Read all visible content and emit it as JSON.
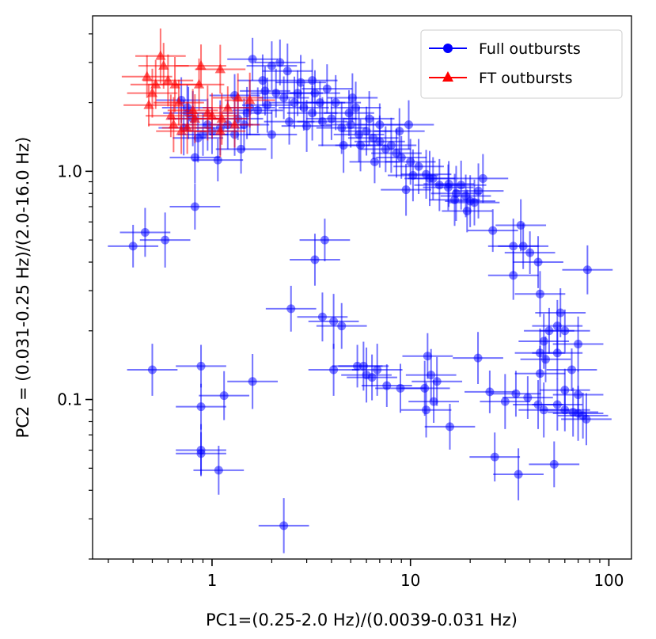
{
  "chart_data": {
    "type": "scatter",
    "title": "",
    "xlabel": "PC1=(0.25-2.0 Hz)/(0.0039-0.031 Hz)",
    "ylabel": "PC2 = (0.031-0.25 Hz)/(2.0-16.0 Hz)",
    "xscale": "log",
    "yscale": "log",
    "xlim": [
      0.25,
      130
    ],
    "ylim": [
      0.02,
      4.8
    ],
    "xticks": [
      {
        "value": 1,
        "label": "1"
      },
      {
        "value": 10,
        "label": "10"
      },
      {
        "value": 100,
        "label": "100"
      }
    ],
    "yticks": [
      {
        "value": 0.1,
        "label": "0.1"
      },
      {
        "value": 1.0,
        "label": "1.0"
      }
    ],
    "grid": false,
    "legend_position": "top-right",
    "series": [
      {
        "name": "Full outbursts",
        "color": "#0000ff",
        "marker": "circle",
        "points": [
          [
            0.4,
            0.47
          ],
          [
            0.46,
            0.54
          ],
          [
            0.58,
            0.5
          ],
          [
            0.82,
            0.7
          ],
          [
            0.5,
            0.135
          ],
          [
            0.88,
            0.14
          ],
          [
            1.15,
            0.104
          ],
          [
            1.6,
            0.12
          ],
          [
            0.88,
            0.093
          ],
          [
            0.88,
            0.06
          ],
          [
            0.88,
            0.058
          ],
          [
            1.08,
            0.049
          ],
          [
            2.3,
            0.028
          ],
          [
            2.5,
            0.25
          ],
          [
            3.3,
            0.41
          ],
          [
            3.7,
            0.5
          ],
          [
            3.6,
            0.23
          ],
          [
            4.1,
            0.22
          ],
          [
            4.5,
            0.21
          ],
          [
            4.1,
            0.135
          ],
          [
            5.4,
            0.14
          ],
          [
            5.8,
            0.14
          ],
          [
            6.0,
            0.128
          ],
          [
            6.4,
            0.125
          ],
          [
            6.8,
            0.135
          ],
          [
            7.6,
            0.115
          ],
          [
            8.9,
            0.112
          ],
          [
            11.8,
            0.112
          ],
          [
            12.2,
            0.155
          ],
          [
            12.7,
            0.128
          ],
          [
            13.1,
            0.098
          ],
          [
            13.6,
            0.12
          ],
          [
            12.0,
            0.09
          ],
          [
            15.8,
            0.076
          ],
          [
            21.9,
            0.152
          ],
          [
            25.1,
            0.108
          ],
          [
            26.6,
            0.056
          ],
          [
            30.0,
            0.098
          ],
          [
            34.0,
            0.106
          ],
          [
            35.0,
            0.047
          ],
          [
            39.0,
            0.102
          ],
          [
            44.0,
            0.095
          ],
          [
            47.0,
            0.09
          ],
          [
            53.0,
            0.052
          ],
          [
            55.0,
            0.095
          ],
          [
            60.0,
            0.09
          ],
          [
            66.0,
            0.088
          ],
          [
            70.0,
            0.087
          ],
          [
            74.0,
            0.085
          ],
          [
            77.0,
            0.082
          ],
          [
            60.0,
            0.11
          ],
          [
            70.0,
            0.105
          ],
          [
            45.0,
            0.13
          ],
          [
            48.0,
            0.15
          ],
          [
            55.0,
            0.16
          ],
          [
            65.0,
            0.135
          ],
          [
            45.0,
            0.16
          ],
          [
            47.0,
            0.18
          ],
          [
            50.0,
            0.2
          ],
          [
            55.0,
            0.21
          ],
          [
            60.0,
            0.2
          ],
          [
            57.0,
            0.24
          ],
          [
            70.0,
            0.175
          ],
          [
            45.0,
            0.29
          ],
          [
            44.0,
            0.4
          ],
          [
            40.0,
            0.44
          ],
          [
            33.0,
            0.35
          ],
          [
            33.0,
            0.47
          ],
          [
            37.0,
            0.47
          ],
          [
            36.0,
            0.58
          ],
          [
            26.0,
            0.55
          ],
          [
            78.0,
            0.37
          ],
          [
            22.0,
            0.82
          ],
          [
            21.0,
            0.73
          ],
          [
            20.0,
            0.74
          ],
          [
            19.0,
            0.78
          ],
          [
            18.0,
            0.87
          ],
          [
            17.0,
            0.8
          ],
          [
            15.5,
            0.85
          ],
          [
            14.0,
            0.87
          ],
          [
            13.0,
            0.93
          ],
          [
            12.0,
            0.97
          ],
          [
            11.0,
            1.05
          ],
          [
            10.0,
            1.1
          ],
          [
            9.5,
            0.83
          ],
          [
            9.0,
            1.15
          ],
          [
            8.5,
            1.2
          ],
          [
            8.0,
            1.3
          ],
          [
            7.5,
            1.25
          ],
          [
            7.0,
            1.35
          ],
          [
            6.5,
            1.4
          ],
          [
            6.0,
            1.5
          ],
          [
            5.5,
            1.45
          ],
          [
            5.0,
            1.6
          ],
          [
            4.5,
            1.55
          ],
          [
            4.0,
            1.7
          ],
          [
            3.6,
            1.65
          ],
          [
            3.2,
            1.8
          ],
          [
            2.9,
            1.9
          ],
          [
            2.6,
            2.0
          ],
          [
            2.3,
            2.1
          ],
          [
            2.1,
            2.2
          ],
          [
            1.9,
            1.95
          ],
          [
            1.7,
            1.85
          ],
          [
            1.5,
            1.8
          ],
          [
            1.35,
            1.7
          ],
          [
            1.2,
            1.6
          ],
          [
            1.1,
            1.55
          ],
          [
            1.0,
            1.5
          ],
          [
            0.95,
            1.6
          ],
          [
            0.9,
            1.45
          ],
          [
            0.85,
            1.4
          ],
          [
            0.8,
            1.7
          ],
          [
            0.75,
            1.9
          ],
          [
            0.82,
            1.15
          ],
          [
            1.07,
            1.12
          ],
          [
            1.4,
            1.25
          ],
          [
            0.72,
            1.55
          ],
          [
            0.7,
            2.05
          ],
          [
            0.76,
            1.8
          ],
          [
            1.6,
            3.1
          ],
          [
            2.0,
            2.9
          ],
          [
            2.4,
            2.75
          ],
          [
            2.2,
            3.0
          ],
          [
            1.8,
            2.5
          ],
          [
            3.2,
            2.5
          ],
          [
            3.8,
            2.3
          ],
          [
            4.2,
            2.0
          ],
          [
            2.7,
            2.2
          ],
          [
            5.3,
            1.9
          ],
          [
            7.0,
            1.6
          ],
          [
            5.1,
            2.1
          ],
          [
            4.6,
            1.3
          ],
          [
            4.9,
            1.8
          ],
          [
            5.6,
            1.3
          ],
          [
            6.6,
            1.1
          ],
          [
            9.8,
            1.6
          ],
          [
            12.5,
            0.93
          ],
          [
            15.6,
            0.88
          ],
          [
            16.7,
            0.75
          ],
          [
            19.3,
            0.67
          ],
          [
            23.2,
            0.93
          ],
          [
            6.2,
            1.7
          ],
          [
            8.8,
            1.5
          ],
          [
            10.3,
            0.96
          ],
          [
            1.3,
            1.45
          ],
          [
            1.85,
            2.25
          ],
          [
            1.55,
            1.9
          ],
          [
            2.45,
            1.65
          ],
          [
            3.0,
            1.58
          ],
          [
            3.5,
            2.0
          ],
          [
            2.0,
            1.45
          ],
          [
            2.8,
            2.45
          ],
          [
            3.3,
            2.2
          ],
          [
            1.45,
            1.6
          ],
          [
            1.3,
            2.15
          ]
        ]
      },
      {
        "name": "FT outbursts",
        "color": "#ff0000",
        "marker": "triangle",
        "points": [
          [
            0.47,
            2.6
          ],
          [
            0.52,
            2.4
          ],
          [
            0.55,
            3.2
          ],
          [
            0.57,
            2.9
          ],
          [
            0.6,
            2.5
          ],
          [
            0.48,
            1.95
          ],
          [
            0.5,
            2.2
          ],
          [
            0.65,
            2.4
          ],
          [
            0.68,
            2.0
          ],
          [
            0.86,
            2.4
          ],
          [
            0.88,
            2.9
          ],
          [
            1.1,
            2.8
          ],
          [
            0.64,
            1.6
          ],
          [
            0.7,
            1.5
          ],
          [
            0.75,
            1.55
          ],
          [
            0.8,
            1.85
          ],
          [
            0.82,
            1.7
          ],
          [
            0.95,
            1.8
          ],
          [
            1.0,
            1.75
          ],
          [
            1.12,
            1.7
          ],
          [
            1.2,
            1.9
          ],
          [
            1.35,
            2.1
          ],
          [
            1.55,
            2.05
          ],
          [
            1.3,
            1.6
          ],
          [
            1.1,
            1.5
          ],
          [
            0.62,
            1.75
          ]
        ]
      }
    ]
  }
}
